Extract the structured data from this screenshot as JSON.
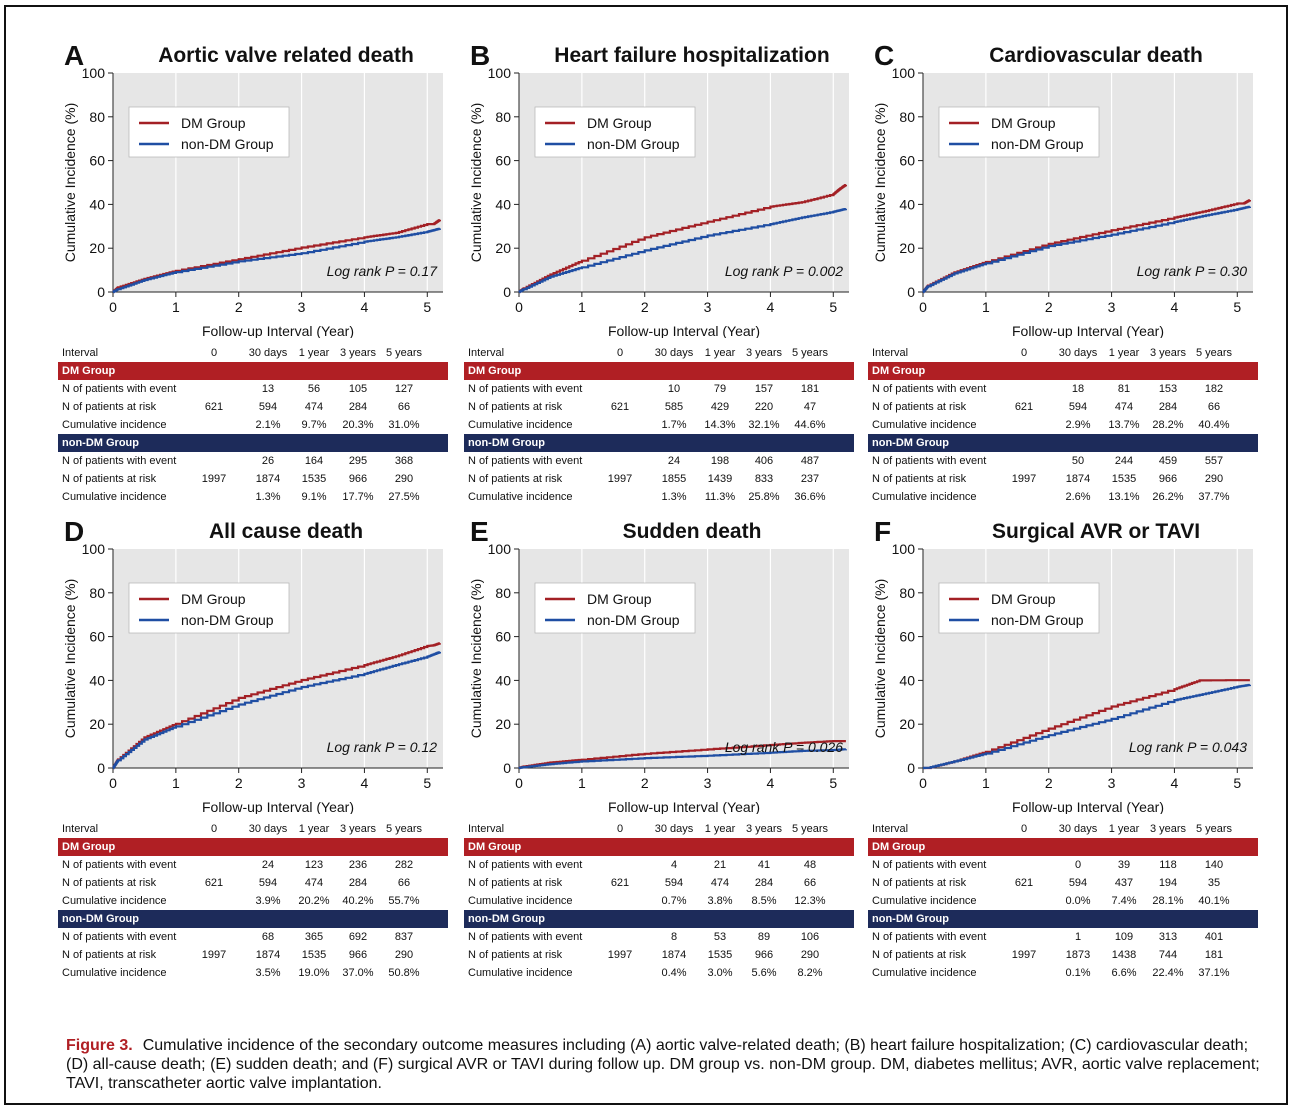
{
  "figure": {
    "caption_label": "Figure 3.",
    "caption_text": "Cumulative incidence of the secondary outcome measures including (A) aortic valve-related death; (B) heart failure hospitalization; (C) cardiovascular death; (D) all-cause death; (E) sudden death; and (F) surgical AVR or TAVI during follow up. DM group vs. non-DM group. DM, diabetes mellitus; AVR, aortic valve replacement; TAVI, transcatheter aortic valve implantation."
  },
  "colors": {
    "dm": "#a32025",
    "non_dm": "#1f4ea3",
    "plot_bg": "#e6e6e6",
    "dm_band": "#b01f24",
    "non_band": "#1d2b5a"
  },
  "table_header": [
    "Interval",
    "0",
    "30 days",
    "1 year",
    "3 years",
    "5 years"
  ],
  "group_labels": {
    "dm": "DM Group",
    "non_dm": "non-DM Group"
  },
  "row_labels": {
    "event": "N of patients with event",
    "risk": "N of patients at risk",
    "cum": "Cumulative incidence"
  },
  "chart_data": [
    {
      "type": "line",
      "letter": "A",
      "title": "Aortic valve related death",
      "xlabel": "Follow-up Interval (Year)",
      "ylabel": "Cumulative Incidence (%)",
      "xlim": [
        0,
        5.25
      ],
      "ylim": [
        0,
        100
      ],
      "xticks": [
        0,
        1,
        2,
        3,
        4,
        5
      ],
      "yticks": [
        0,
        20,
        40,
        60,
        80,
        100
      ],
      "legend_position": "top-left",
      "annotation": "Log rank P = 0.17",
      "series": [
        {
          "name": "DM Group",
          "x": [
            0,
            0.08,
            0.5,
            1,
            2,
            3,
            4,
            4.5,
            5,
            5.1,
            5.2
          ],
          "y": [
            0,
            2.1,
            6,
            9.7,
            15,
            20.3,
            25,
            27,
            31,
            31,
            33
          ]
        },
        {
          "name": "non-DM Group",
          "x": [
            0,
            0.08,
            0.5,
            1,
            2,
            3,
            4,
            4.5,
            5,
            5.2
          ],
          "y": [
            0,
            1.3,
            5.5,
            9.1,
            14,
            17.7,
            23,
            25,
            27.5,
            29
          ]
        }
      ],
      "table": {
        "dm": {
          "event": [
            "",
            "13",
            "56",
            "105",
            "127"
          ],
          "risk": [
            "621",
            "594",
            "474",
            "284",
            "66"
          ],
          "cum": [
            "",
            "2.1%",
            "9.7%",
            "20.3%",
            "31.0%"
          ]
        },
        "non_dm": {
          "event": [
            "",
            "26",
            "164",
            "295",
            "368"
          ],
          "risk": [
            "1997",
            "1874",
            "1535",
            "966",
            "290"
          ],
          "cum": [
            "",
            "1.3%",
            "9.1%",
            "17.7%",
            "27.5%"
          ]
        }
      }
    },
    {
      "type": "line",
      "letter": "B",
      "title": "Heart failure hospitalization",
      "xlabel": "Follow-up Interval (Year)",
      "ylabel": "Cumulative Incidence (%)",
      "xlim": [
        0,
        5.25
      ],
      "ylim": [
        0,
        100
      ],
      "xticks": [
        0,
        1,
        2,
        3,
        4,
        5
      ],
      "yticks": [
        0,
        20,
        40,
        60,
        80,
        100
      ],
      "legend_position": "top-left",
      "annotation": "Log rank P = 0.002",
      "series": [
        {
          "name": "DM Group",
          "x": [
            0,
            0.08,
            0.5,
            1,
            2,
            3,
            4,
            4.5,
            5,
            5.1,
            5.2
          ],
          "y": [
            0,
            1.7,
            8,
            14.3,
            25,
            32.1,
            39,
            41,
            44.6,
            47,
            49
          ]
        },
        {
          "name": "non-DM Group",
          "x": [
            0,
            0.08,
            0.5,
            1,
            2,
            3,
            4,
            4.5,
            5,
            5.2
          ],
          "y": [
            0,
            1.3,
            7,
            11.3,
            19,
            25.8,
            31,
            34,
            36.6,
            38
          ]
        }
      ],
      "table": {
        "dm": {
          "event": [
            "",
            "10",
            "79",
            "157",
            "181"
          ],
          "risk": [
            "621",
            "585",
            "429",
            "220",
            "47"
          ],
          "cum": [
            "",
            "1.7%",
            "14.3%",
            "32.1%",
            "44.6%"
          ]
        },
        "non_dm": {
          "event": [
            "",
            "24",
            "198",
            "406",
            "487"
          ],
          "risk": [
            "1997",
            "1855",
            "1439",
            "833",
            "237"
          ],
          "cum": [
            "",
            "1.3%",
            "11.3%",
            "25.8%",
            "36.6%"
          ]
        }
      }
    },
    {
      "type": "line",
      "letter": "C",
      "title": "Cardiovascular death",
      "xlabel": "Follow-up Interval (Year)",
      "ylabel": "Cumulative Incidence (%)",
      "xlim": [
        0,
        5.25
      ],
      "ylim": [
        0,
        100
      ],
      "xticks": [
        0,
        1,
        2,
        3,
        4,
        5
      ],
      "yticks": [
        0,
        20,
        40,
        60,
        80,
        100
      ],
      "legend_position": "top-left",
      "annotation": "Log rank P = 0.30",
      "series": [
        {
          "name": "DM Group",
          "x": [
            0,
            0.08,
            0.5,
            1,
            2,
            3,
            4,
            4.5,
            5,
            5.1,
            5.2
          ],
          "y": [
            0,
            2.9,
            9,
            13.7,
            22,
            28.2,
            34,
            37,
            40.4,
            40.4,
            42
          ]
        },
        {
          "name": "non-DM Group",
          "x": [
            0,
            0.08,
            0.5,
            1,
            2,
            3,
            4,
            4.5,
            5,
            5.2
          ],
          "y": [
            0,
            2.6,
            8.5,
            13.1,
            21,
            26.2,
            32,
            35,
            37.7,
            39
          ]
        }
      ],
      "table": {
        "dm": {
          "event": [
            "",
            "18",
            "81",
            "153",
            "182"
          ],
          "risk": [
            "621",
            "594",
            "474",
            "284",
            "66"
          ],
          "cum": [
            "",
            "2.9%",
            "13.7%",
            "28.2%",
            "40.4%"
          ]
        },
        "non_dm": {
          "event": [
            "",
            "50",
            "244",
            "459",
            "557"
          ],
          "risk": [
            "1997",
            "1874",
            "1535",
            "966",
            "290"
          ],
          "cum": [
            "",
            "2.6%",
            "13.1%",
            "26.2%",
            "37.7%"
          ]
        }
      }
    },
    {
      "type": "line",
      "letter": "D",
      "title": "All cause death",
      "xlabel": "Follow-up Interval (Year)",
      "ylabel": "Cumulative Incidence (%)",
      "xlim": [
        0,
        5.25
      ],
      "ylim": [
        0,
        100
      ],
      "xticks": [
        0,
        1,
        2,
        3,
        4,
        5
      ],
      "yticks": [
        0,
        20,
        40,
        60,
        80,
        100
      ],
      "legend_position": "top-left",
      "annotation": "Log rank P = 0.12",
      "series": [
        {
          "name": "DM Group",
          "x": [
            0,
            0.08,
            0.5,
            1,
            2,
            3,
            4,
            4.5,
            5,
            5.1,
            5.2
          ],
          "y": [
            0,
            3.9,
            14,
            20.2,
            32,
            40.2,
            47,
            51,
            55.7,
            56,
            57
          ]
        },
        {
          "name": "non-DM Group",
          "x": [
            0,
            0.08,
            0.5,
            1,
            2,
            3,
            4,
            4.5,
            5,
            5.2
          ],
          "y": [
            0,
            3.5,
            13,
            19,
            29,
            37,
            43,
            47,
            50.8,
            53
          ]
        }
      ],
      "table": {
        "dm": {
          "event": [
            "",
            "24",
            "123",
            "236",
            "282"
          ],
          "risk": [
            "621",
            "594",
            "474",
            "284",
            "66"
          ],
          "cum": [
            "",
            "3.9%",
            "20.2%",
            "40.2%",
            "55.7%"
          ]
        },
        "non_dm": {
          "event": [
            "",
            "68",
            "365",
            "692",
            "837"
          ],
          "risk": [
            "1997",
            "1874",
            "1535",
            "966",
            "290"
          ],
          "cum": [
            "",
            "3.5%",
            "19.0%",
            "37.0%",
            "50.8%"
          ]
        }
      }
    },
    {
      "type": "line",
      "letter": "E",
      "title": "Sudden death",
      "xlabel": "Follow-up Interval (Year)",
      "ylabel": "Cumulative Incidence (%)",
      "xlim": [
        0,
        5.25
      ],
      "ylim": [
        0,
        100
      ],
      "xticks": [
        0,
        1,
        2,
        3,
        4,
        5
      ],
      "yticks": [
        0,
        20,
        40,
        60,
        80,
        100
      ],
      "legend_position": "top-left",
      "annotation": "Log rank P = 0.026",
      "series": [
        {
          "name": "DM Group",
          "x": [
            0,
            0.08,
            0.5,
            1,
            2,
            3,
            4,
            4.5,
            5,
            5.2
          ],
          "y": [
            0,
            0.7,
            2.5,
            3.8,
            6.5,
            8.5,
            10.5,
            11.5,
            12.3,
            12.3
          ]
        },
        {
          "name": "non-DM Group",
          "x": [
            0,
            0.08,
            0.5,
            1,
            2,
            3,
            4,
            4.5,
            5,
            5.2
          ],
          "y": [
            0,
            0.4,
            1.8,
            3,
            4.5,
            5.6,
            7,
            7.8,
            8.2,
            8.6
          ]
        }
      ],
      "table": {
        "dm": {
          "event": [
            "",
            "4",
            "21",
            "41",
            "48"
          ],
          "risk": [
            "621",
            "594",
            "474",
            "284",
            "66"
          ],
          "cum": [
            "",
            "0.7%",
            "3.8%",
            "8.5%",
            "12.3%"
          ]
        },
        "non_dm": {
          "event": [
            "",
            "8",
            "53",
            "89",
            "106"
          ],
          "risk": [
            "1997",
            "1874",
            "1535",
            "966",
            "290"
          ],
          "cum": [
            "",
            "0.4%",
            "3.0%",
            "5.6%",
            "8.2%"
          ]
        }
      }
    },
    {
      "type": "line",
      "letter": "F",
      "title": "Surgical AVR or TAVI",
      "xlabel": "Follow-up Interval (Year)",
      "ylabel": "Cumulative Incidence (%)",
      "xlim": [
        0,
        5.25
      ],
      "ylim": [
        0,
        100
      ],
      "xticks": [
        0,
        1,
        2,
        3,
        4,
        5
      ],
      "yticks": [
        0,
        20,
        40,
        60,
        80,
        100
      ],
      "legend_position": "top-left",
      "annotation": "Log rank P = 0.043",
      "series": [
        {
          "name": "DM Group",
          "x": [
            0,
            0.08,
            0.5,
            1,
            2,
            3,
            4,
            4.4,
            5,
            5.2
          ],
          "y": [
            0,
            0,
            3,
            7.4,
            18,
            28.1,
            36,
            40,
            40.1,
            40.1
          ]
        },
        {
          "name": "non-DM Group",
          "x": [
            0,
            0.08,
            0.5,
            1,
            2,
            3,
            4,
            4.5,
            5,
            5.2
          ],
          "y": [
            0,
            0.1,
            3,
            6.6,
            15,
            22.4,
            31,
            34,
            37.1,
            38
          ]
        }
      ],
      "table": {
        "dm": {
          "event": [
            "",
            "0",
            "39",
            "118",
            "140"
          ],
          "risk": [
            "621",
            "594",
            "437",
            "194",
            "35"
          ],
          "cum": [
            "",
            "0.0%",
            "7.4%",
            "28.1%",
            "40.1%"
          ]
        },
        "non_dm": {
          "event": [
            "",
            "1",
            "109",
            "313",
            "401"
          ],
          "risk": [
            "1997",
            "1873",
            "1438",
            "744",
            "181"
          ],
          "cum": [
            "",
            "0.1%",
            "6.6%",
            "22.4%",
            "37.1%"
          ]
        }
      }
    }
  ]
}
